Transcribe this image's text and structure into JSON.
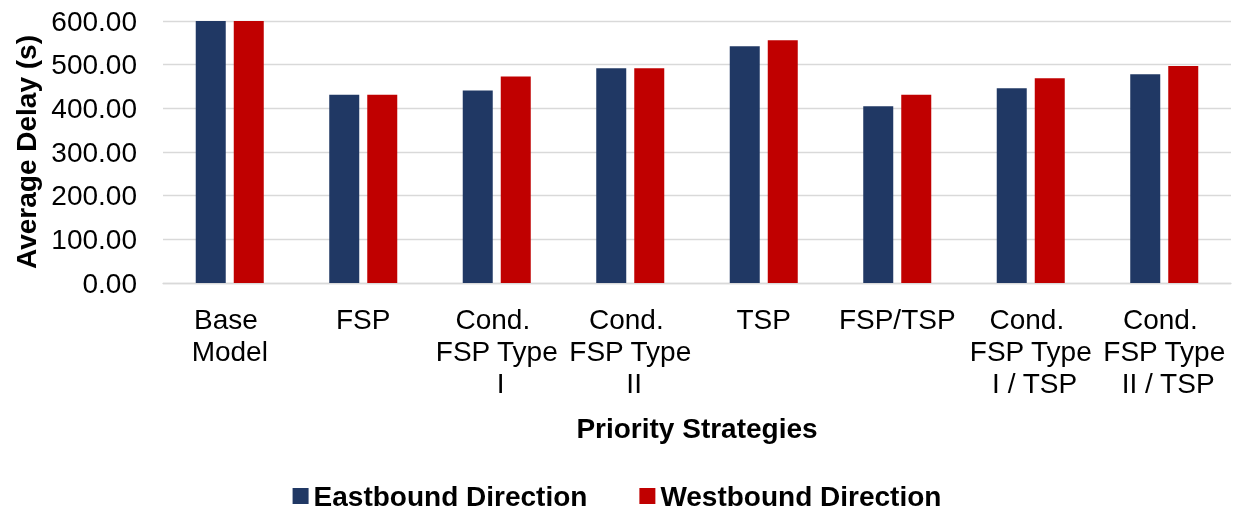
{
  "chart_data": {
    "type": "bar",
    "xlabel": "Priority Strategies",
    "ylabel": "Average Delay (s)",
    "categories": [
      "Base Model",
      "FSP",
      "Cond. FSP Type I",
      "Cond. FSP Type II",
      "TSP",
      "FSP/TSP",
      "Cond. FSP Type I / TSP",
      "Cond. FSP Type II / TSP"
    ],
    "series": [
      {
        "name": "Eastbound Direction",
        "color": "#203864",
        "values": [
          600,
          431,
          441,
          492,
          542,
          405,
          446,
          478
        ]
      },
      {
        "name": "Westbound Direction",
        "color": "#c00000",
        "values": [
          600,
          431,
          473,
          492,
          556,
          431,
          469,
          497
        ]
      }
    ],
    "ylim": [
      0,
      600
    ],
    "yticks": [
      {
        "value": 0,
        "label": "0.00"
      },
      {
        "value": 100,
        "label": "100.00"
      },
      {
        "value": 200,
        "label": "200.00"
      },
      {
        "value": 300,
        "label": "300.00"
      },
      {
        "value": 400,
        "label": "400.00"
      },
      {
        "value": 500,
        "label": "500.00"
      },
      {
        "value": 600,
        "label": "600.00"
      }
    ],
    "grid": "y",
    "legend": "bottom"
  }
}
